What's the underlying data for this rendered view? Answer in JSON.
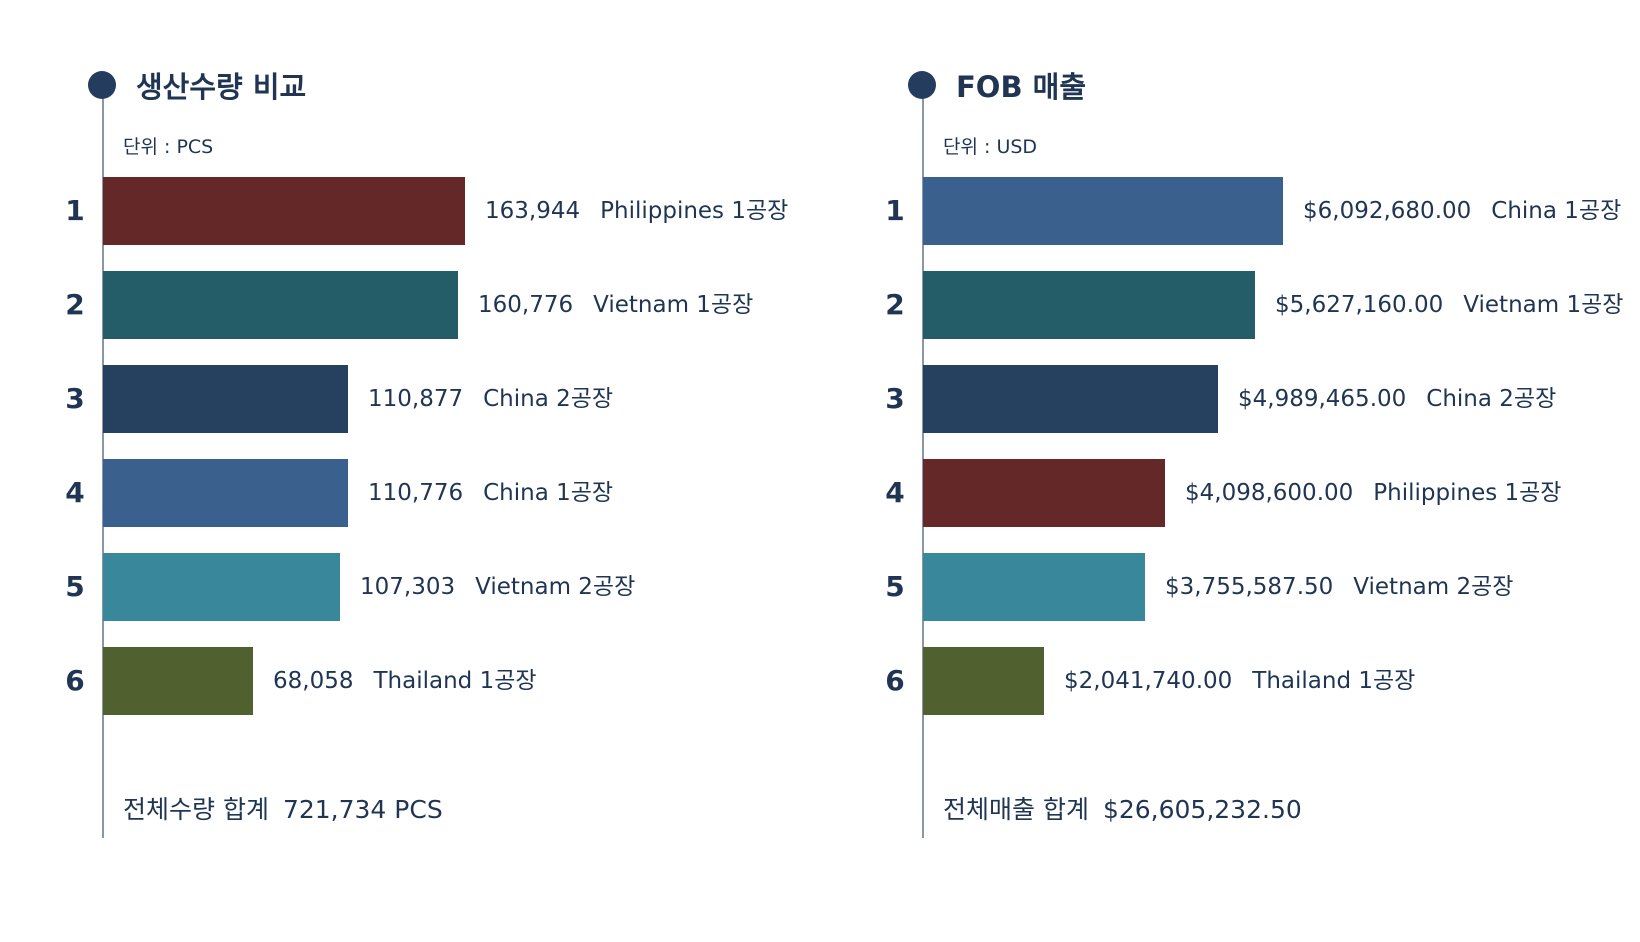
{
  "colors": {
    "dark_red": "#632827",
    "dark_teal": "#245c68",
    "navy": "#26405f",
    "steel_blue": "#3a608e",
    "teal": "#38879a",
    "olive": "#51602f",
    "axis": "#8a97a8",
    "marker": "#243d5e",
    "text": "#1f3553"
  },
  "chart_data": [
    {
      "type": "bar",
      "orientation": "horizontal",
      "title": "생산수량 비교",
      "unit_label": "단위 : PCS",
      "ranks": [
        "1",
        "2",
        "3",
        "4",
        "5",
        "6"
      ],
      "categories": [
        "Philippines 1공장",
        "Vietnam 1공장",
        "China 2공장",
        "China 1공장",
        "Vietnam 2공장",
        "Thailand 1공장"
      ],
      "values": [
        163944,
        160776,
        110877,
        110776,
        107303,
        68058
      ],
      "value_labels": [
        "163,944",
        "160,776",
        "110,877",
        "110,776",
        "107,303",
        "68,058"
      ],
      "bar_colors": [
        "#632827",
        "#245c68",
        "#26405f",
        "#3a608e",
        "#38879a",
        "#51602f"
      ],
      "xlim": [
        0,
        163944
      ],
      "grid": false,
      "total_label": "전체수량 합계",
      "total_value": "721,734 PCS"
    },
    {
      "type": "bar",
      "orientation": "horizontal",
      "title": "FOB 매출",
      "unit_label": "단위 : USD",
      "ranks": [
        "1",
        "2",
        "3",
        "4",
        "5",
        "6"
      ],
      "categories": [
        "China 1공장",
        "Vietnam 1공장",
        "China 2공장",
        "Philippines 1공장",
        "Vietnam 2공장",
        "Thailand 1공장"
      ],
      "values": [
        6092680.0,
        5627160.0,
        4989465.0,
        4098600.0,
        3755587.5,
        2041740.0
      ],
      "value_labels": [
        "$6,092,680.00",
        "$5,627,160.00",
        "$4,989,465.00",
        "$4,098,600.00",
        "$3,755,587.50",
        "$2,041,740.00"
      ],
      "bar_colors": [
        "#3a608e",
        "#245c68",
        "#26405f",
        "#632827",
        "#38879a",
        "#51602f"
      ],
      "xlim": [
        0,
        6092680.0
      ],
      "grid": false,
      "total_label": "전체매출 합계",
      "total_value": "$26,605,232.50"
    }
  ]
}
